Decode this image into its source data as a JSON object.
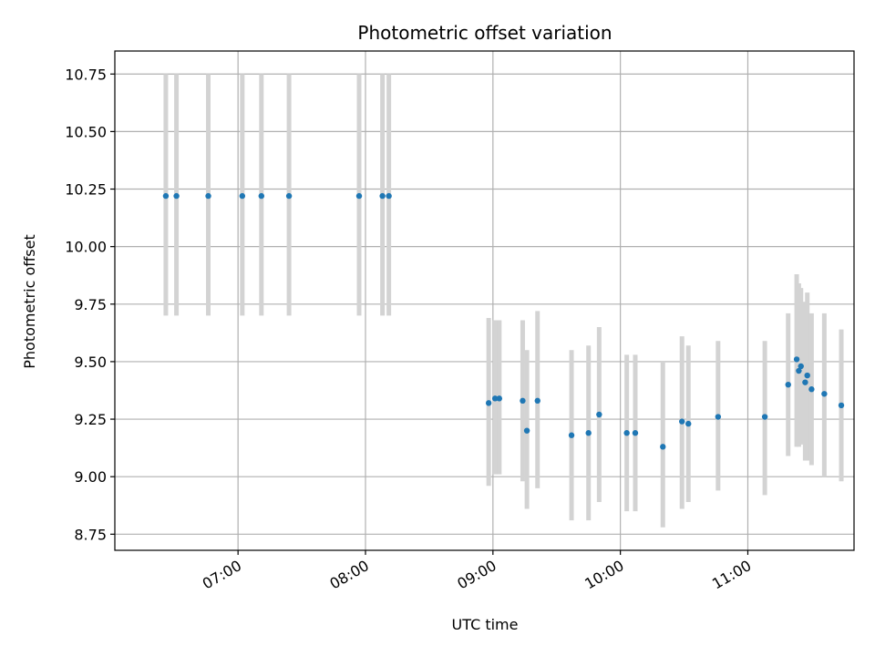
{
  "chart_data": {
    "type": "scatter",
    "title": "Photometric offset variation",
    "xlabel": "UTC time",
    "ylabel": "Photometric offset",
    "x_format": "HH:MM",
    "xlim": [
      "06:02",
      "11:50"
    ],
    "ylim": [
      8.68,
      10.85
    ],
    "x_ticks": [
      "07:00",
      "08:00",
      "09:00",
      "10:00",
      "11:00"
    ],
    "y_ticks": [
      8.75,
      9.0,
      9.25,
      9.5,
      9.75,
      10.0,
      10.25,
      10.5,
      10.75
    ],
    "y_tick_labels": [
      "8.75",
      "9.00",
      "9.25",
      "9.50",
      "9.75",
      "10.00",
      "10.25",
      "10.50",
      "10.75"
    ],
    "grid": true,
    "marker_color": "#1f77b4",
    "errorbar_color": "#d3d3d3",
    "series": [
      {
        "points": [
          {
            "x": "06:26",
            "y": 10.22,
            "lo": 9.7,
            "hi": 10.75
          },
          {
            "x": "06:31",
            "y": 10.22,
            "lo": 9.7,
            "hi": 10.75
          },
          {
            "x": "06:46",
            "y": 10.22,
            "lo": 9.7,
            "hi": 10.75
          },
          {
            "x": "07:02",
            "y": 10.22,
            "lo": 9.7,
            "hi": 10.75
          },
          {
            "x": "07:11",
            "y": 10.22,
            "lo": 9.7,
            "hi": 10.75
          },
          {
            "x": "07:24",
            "y": 10.22,
            "lo": 9.7,
            "hi": 10.75
          },
          {
            "x": "07:57",
            "y": 10.22,
            "lo": 9.7,
            "hi": 10.75
          },
          {
            "x": "08:08",
            "y": 10.22,
            "lo": 9.7,
            "hi": 10.75
          },
          {
            "x": "08:11",
            "y": 10.22,
            "lo": 9.7,
            "hi": 10.75
          },
          {
            "x": "08:58",
            "y": 9.32,
            "lo": 8.96,
            "hi": 9.69
          },
          {
            "x": "09:01",
            "y": 9.34,
            "lo": 9.01,
            "hi": 9.68
          },
          {
            "x": "09:03",
            "y": 9.34,
            "lo": 9.01,
            "hi": 9.68
          },
          {
            "x": "09:14",
            "y": 9.33,
            "lo": 8.98,
            "hi": 9.68
          },
          {
            "x": "09:16",
            "y": 9.2,
            "lo": 8.86,
            "hi": 9.55
          },
          {
            "x": "09:21",
            "y": 9.33,
            "lo": 8.95,
            "hi": 9.72
          },
          {
            "x": "09:37",
            "y": 9.18,
            "lo": 8.81,
            "hi": 9.55
          },
          {
            "x": "09:45",
            "y": 9.19,
            "lo": 8.81,
            "hi": 9.57
          },
          {
            "x": "09:50",
            "y": 9.27,
            "lo": 8.89,
            "hi": 9.65
          },
          {
            "x": "10:03",
            "y": 9.19,
            "lo": 8.85,
            "hi": 9.53
          },
          {
            "x": "10:07",
            "y": 9.19,
            "lo": 8.85,
            "hi": 9.53
          },
          {
            "x": "10:20",
            "y": 9.13,
            "lo": 8.78,
            "hi": 9.5
          },
          {
            "x": "10:29",
            "y": 9.24,
            "lo": 8.86,
            "hi": 9.61
          },
          {
            "x": "10:32",
            "y": 9.23,
            "lo": 8.89,
            "hi": 9.57
          },
          {
            "x": "10:46",
            "y": 9.26,
            "lo": 8.94,
            "hi": 9.59
          },
          {
            "x": "11:08",
            "y": 9.26,
            "lo": 8.92,
            "hi": 9.59
          },
          {
            "x": "11:19",
            "y": 9.4,
            "lo": 9.09,
            "hi": 9.71
          },
          {
            "x": "11:23",
            "y": 9.51,
            "lo": 9.13,
            "hi": 9.88
          },
          {
            "x": "11:24",
            "y": 9.46,
            "lo": 9.13,
            "hi": 9.84
          },
          {
            "x": "11:25",
            "y": 9.48,
            "lo": 9.14,
            "hi": 9.82
          },
          {
            "x": "11:27",
            "y": 9.41,
            "lo": 9.07,
            "hi": 9.76
          },
          {
            "x": "11:28",
            "y": 9.44,
            "lo": 9.07,
            "hi": 9.8
          },
          {
            "x": "11:30",
            "y": 9.38,
            "lo": 9.05,
            "hi": 9.71
          },
          {
            "x": "11:36",
            "y": 9.36,
            "lo": 9.0,
            "hi": 9.71
          },
          {
            "x": "11:44",
            "y": 9.31,
            "lo": 8.98,
            "hi": 9.64
          }
        ]
      }
    ]
  }
}
